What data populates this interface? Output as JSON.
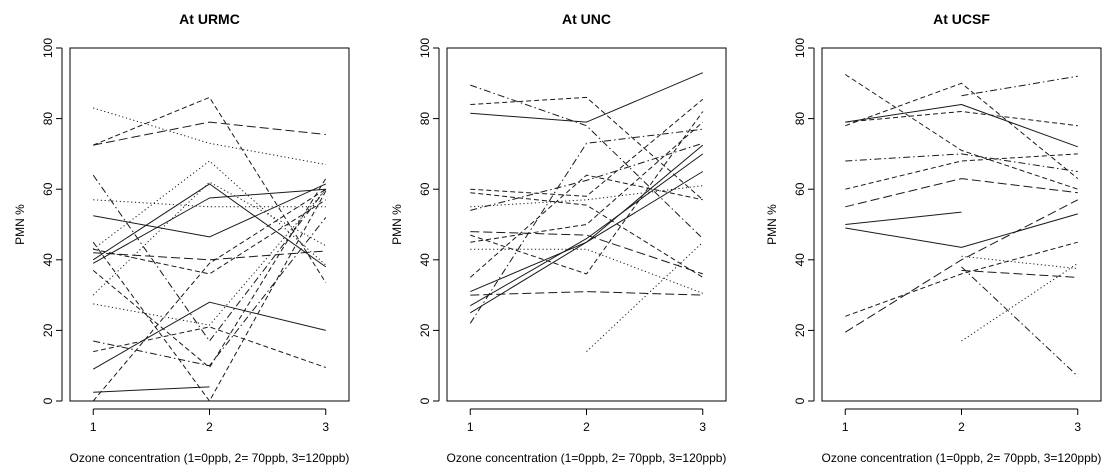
{
  "chart_data": [
    {
      "type": "line",
      "title": "At URMC",
      "xlabel": "Ozone concentration (1=0ppb, 2= 70ppb, 3=120ppb)",
      "ylabel": "PMN %",
      "x": [
        1,
        2,
        3
      ],
      "xticks": [
        "1",
        "2",
        "3"
      ],
      "yticks": [
        "0",
        "20",
        "40",
        "60",
        "80",
        "100"
      ],
      "xlim": [
        0.8,
        3.2
      ],
      "ylim": [
        0,
        100
      ],
      "grid": false,
      "legend": "none",
      "series": [
        {
          "values": [
            72.5,
            79,
            75.5
          ],
          "dash": "long"
        },
        {
          "values": [
            83,
            73,
            67
          ],
          "dash": "dotted"
        },
        {
          "values": [
            72.5,
            86,
            33.5
          ],
          "dash": "dashed"
        },
        {
          "values": [
            64,
            17,
            60
          ],
          "dash": "dashdot"
        },
        {
          "values": [
            57,
            55,
            55
          ],
          "dash": "dotted"
        },
        {
          "values": [
            52.5,
            46.5,
            61.5
          ],
          "dash": "solid"
        },
        {
          "values": [
            43,
            68,
            38.5
          ],
          "dash": "dotted"
        },
        {
          "values": [
            43,
            36,
            57
          ],
          "dash": "dashed"
        },
        {
          "values": [
            42,
            40,
            42.5
          ],
          "dash": "long"
        },
        {
          "values": [
            40,
            61.5,
            38
          ],
          "dash": "solid"
        },
        {
          "values": [
            39,
            57.5,
            60
          ],
          "dash": "solid"
        },
        {
          "values": [
            37,
            9.5,
            63
          ],
          "dash": "dashed"
        },
        {
          "values": [
            30,
            62,
            44
          ],
          "dash": "dotted"
        },
        {
          "values": [
            27.5,
            21.5,
            60
          ],
          "dash": "dotted"
        },
        {
          "values": [
            17,
            10,
            52
          ],
          "dash": "dashdot"
        },
        {
          "values": [
            14,
            21,
            9.5
          ],
          "dash": "dashed"
        },
        {
          "values": [
            9,
            28,
            20
          ],
          "dash": "solid"
        },
        {
          "values": [
            0,
            39,
            60
          ],
          "dash": "dashed"
        },
        {
          "values": [
            45,
            0,
            59.5
          ],
          "dash": "dashed"
        },
        {
          "values": [
            2.5,
            4,
            null
          ],
          "dash": "solid"
        }
      ]
    },
    {
      "type": "line",
      "title": "At UNC",
      "xlabel": "Ozone concentration (1=0ppb, 2= 70ppb, 3=120ppb)",
      "ylabel": "PMN %",
      "x": [
        1,
        2,
        3
      ],
      "xticks": [
        "1",
        "2",
        "3"
      ],
      "yticks": [
        "0",
        "20",
        "40",
        "60",
        "80",
        "100"
      ],
      "xlim": [
        0.8,
        3.2
      ],
      "ylim": [
        0,
        100
      ],
      "grid": false,
      "legend": "none",
      "series": [
        {
          "values": [
            89.5,
            78,
            46
          ],
          "dash": "dashdot"
        },
        {
          "values": [
            84,
            86,
            57
          ],
          "dash": "dashed"
        },
        {
          "values": [
            81.5,
            79,
            93
          ],
          "dash": "solid"
        },
        {
          "values": [
            60,
            58,
            85.5
          ],
          "dash": "dashed"
        },
        {
          "values": [
            54,
            62.5,
            73
          ],
          "dash": "dashdot"
        },
        {
          "values": [
            55,
            57,
            61
          ],
          "dash": "dotted"
        },
        {
          "values": [
            48,
            47,
            36
          ],
          "dash": "long"
        },
        {
          "values": [
            45,
            50,
            79
          ],
          "dash": "dashed"
        },
        {
          "values": [
            43,
            43,
            30.5
          ],
          "dash": "dotted"
        },
        {
          "values": [
            47,
            36,
            82
          ],
          "dash": "dashed"
        },
        {
          "values": [
            35,
            64,
            57
          ],
          "dash": "dashed"
        },
        {
          "values": [
            31,
            45,
            72.5
          ],
          "dash": "solid"
        },
        {
          "values": [
            30,
            31,
            30
          ],
          "dash": "long"
        },
        {
          "values": [
            27,
            46,
            70
          ],
          "dash": "solid"
        },
        {
          "values": [
            25,
            45,
            65
          ],
          "dash": "solid"
        },
        {
          "values": [
            22,
            73,
            77
          ],
          "dash": "dashdot"
        },
        {
          "values": [
            null,
            14,
            45
          ],
          "dash": "dotted"
        },
        {
          "values": [
            59,
            55.5,
            35
          ],
          "dash": "dashed"
        }
      ]
    },
    {
      "type": "line",
      "title": "At UCSF",
      "xlabel": "Ozone concentration (1=0ppb, 2= 70ppb, 3=120ppb)",
      "ylabel": "PMN %",
      "x": [
        1,
        2,
        3
      ],
      "xticks": [
        "1",
        "2",
        "3"
      ],
      "yticks": [
        "0",
        "20",
        "40",
        "60",
        "80",
        "100"
      ],
      "xlim": [
        0.8,
        3.2
      ],
      "ylim": [
        0,
        100
      ],
      "grid": false,
      "legend": "none",
      "series": [
        {
          "values": [
            92.5,
            71,
            60
          ],
          "dash": "dashed"
        },
        {
          "values": [
            79,
            84,
            72
          ],
          "dash": "solid"
        },
        {
          "values": [
            79,
            82,
            78
          ],
          "dash": "dashed"
        },
        {
          "values": [
            null,
            86.5,
            92
          ],
          "dash": "dashdot"
        },
        {
          "values": [
            78,
            90,
            63
          ],
          "dash": "dashed"
        },
        {
          "values": [
            68,
            70,
            65
          ],
          "dash": "dashdot"
        },
        {
          "values": [
            60,
            68,
            70
          ],
          "dash": "dashed"
        },
        {
          "values": [
            55,
            63,
            59
          ],
          "dash": "long"
        },
        {
          "values": [
            50,
            53.5,
            null
          ],
          "dash": "solid"
        },
        {
          "values": [
            49,
            43.5,
            53
          ],
          "dash": "solid"
        },
        {
          "values": [
            null,
            41,
            37.5
          ],
          "dash": "dotted"
        },
        {
          "values": [
            null,
            37,
            35
          ],
          "dash": "long"
        },
        {
          "values": [
            24,
            36,
            45
          ],
          "dash": "dashed"
        },
        {
          "values": [
            19.5,
            40,
            57
          ],
          "dash": "long"
        },
        {
          "values": [
            null,
            38,
            7
          ],
          "dash": "dashdot"
        },
        {
          "values": [
            null,
            17,
            39
          ],
          "dash": "dotted"
        }
      ]
    }
  ]
}
